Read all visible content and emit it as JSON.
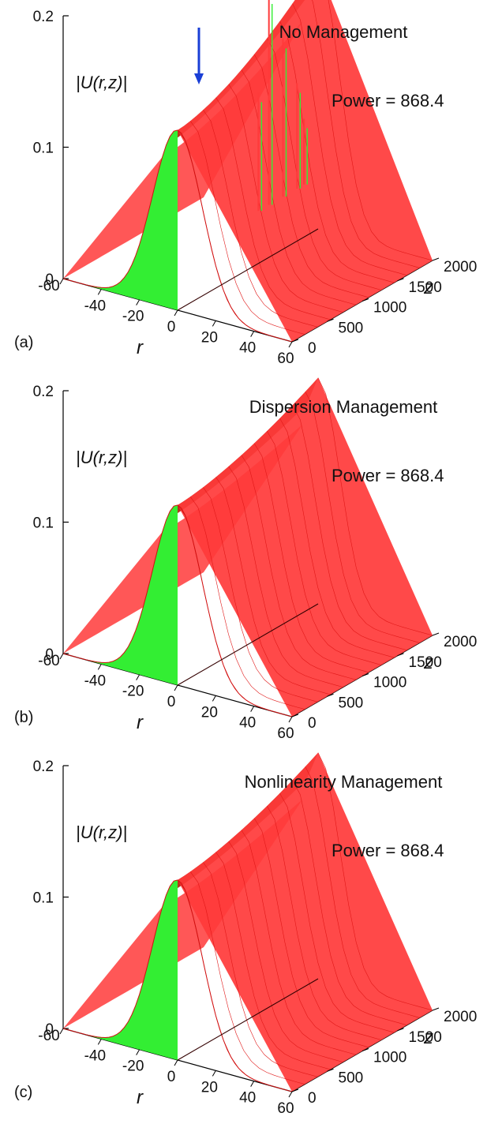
{
  "chart_data": [
    {
      "type": "surface",
      "panel_label": "(a)",
      "title": "No Management",
      "annotation": "Power = 868.4",
      "zlabel": "|U(r,z)|",
      "xlabel": "r",
      "ylabel": "z",
      "r_ticks": [
        "-60",
        "-40",
        "-20",
        "0",
        "20",
        "40",
        "60"
      ],
      "z_ticks": [
        "0",
        "500",
        "1000",
        "1500",
        "2000"
      ],
      "u_ticks": [
        "0",
        "0.1",
        "0.2"
      ],
      "rlim": [
        -60,
        60
      ],
      "zlim": [
        0,
        2000
      ],
      "ulim": [
        0,
        0.2
      ],
      "initial_peak": 0.137,
      "final_peak": 0.2,
      "collapse": true,
      "arrow_color": "#1a3fd6"
    },
    {
      "type": "surface",
      "panel_label": "(b)",
      "title": "Dispersion Management",
      "annotation": "Power = 868.4",
      "zlabel": "|U(r,z)|",
      "xlabel": "r",
      "ylabel": "z",
      "r_ticks": [
        "-60",
        "-40",
        "-20",
        "0",
        "20",
        "40",
        "60"
      ],
      "z_ticks": [
        "0",
        "500",
        "1000",
        "1500",
        "2000"
      ],
      "u_ticks": [
        "0",
        "0.1",
        "0.2"
      ],
      "rlim": [
        -60,
        60
      ],
      "zlim": [
        0,
        2000
      ],
      "ulim": [
        0,
        0.2
      ],
      "initial_peak": 0.137,
      "final_peak": 0.172,
      "collapse": false
    },
    {
      "type": "surface",
      "panel_label": "(c)",
      "title": "Nonlinearity Management",
      "annotation": "Power = 868.4",
      "zlabel": "|U(r,z)|",
      "xlabel": "r",
      "ylabel": "z",
      "r_ticks": [
        "-60",
        "-40",
        "-20",
        "0",
        "20",
        "40",
        "60"
      ],
      "z_ticks": [
        "0",
        "500",
        "1000",
        "1500",
        "2000"
      ],
      "u_ticks": [
        "0",
        "0.1",
        "0.2"
      ],
      "rlim": [
        -60,
        60
      ],
      "zlim": [
        0,
        2000
      ],
      "ulim": [
        0,
        0.2
      ],
      "initial_peak": 0.137,
      "final_peak": 0.172,
      "collapse": false
    }
  ],
  "colors": {
    "surface": "#ff3a3a",
    "surface_dark": "#b02a10",
    "front": "#33ee33",
    "axis": "#000000"
  }
}
